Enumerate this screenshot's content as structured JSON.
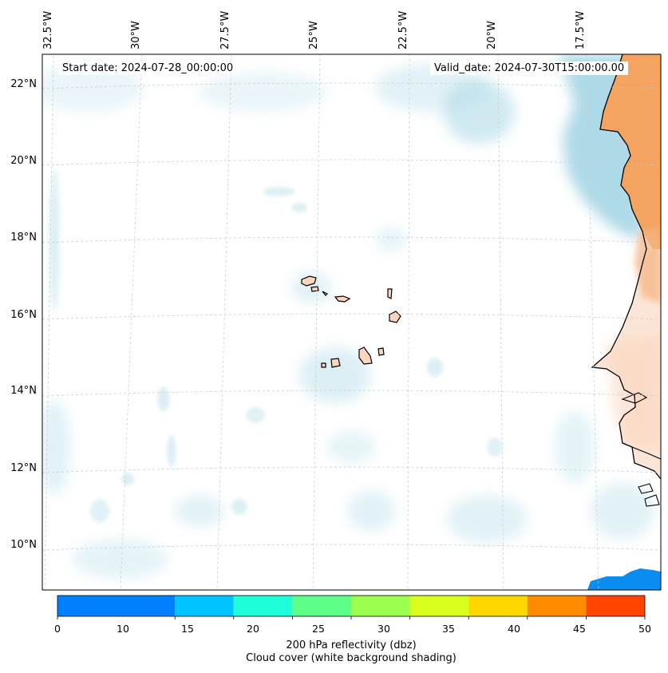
{
  "map": {
    "start_date": "Start date: 2024-07-28_00:00:00",
    "valid_date": "Valid_date: 2024-07-30T15:00:00.00",
    "longitude_labels": [
      "32.5°W",
      "30°W",
      "27.5°W",
      "25°W",
      "22.5°W",
      "20°W",
      "17.5°W"
    ],
    "latitude_labels": [
      "22°N",
      "20°N",
      "18°N",
      "16°N",
      "14°N",
      "12°N",
      "10°N"
    ]
  },
  "colorbar": {
    "ticks": [
      "0",
      "10",
      "15",
      "20",
      "25",
      "30",
      "35",
      "40",
      "45",
      "50"
    ],
    "colors": [
      "#0080ff",
      "#00c4ff",
      "#1effd9",
      "#5dff8a",
      "#9bff4f",
      "#d8ff1e",
      "#ffd700",
      "#ff8c00",
      "#ff4500"
    ],
    "label": "200 hPa reflectivity (dbz)",
    "sublabel": "Cloud cover (white background shading)"
  },
  "colors": {
    "land_high": "#f4a460",
    "land_low": "#fbd5bd",
    "cloud": "#aad8e6",
    "reflectivity_patch": "#0a8cf0"
  }
}
